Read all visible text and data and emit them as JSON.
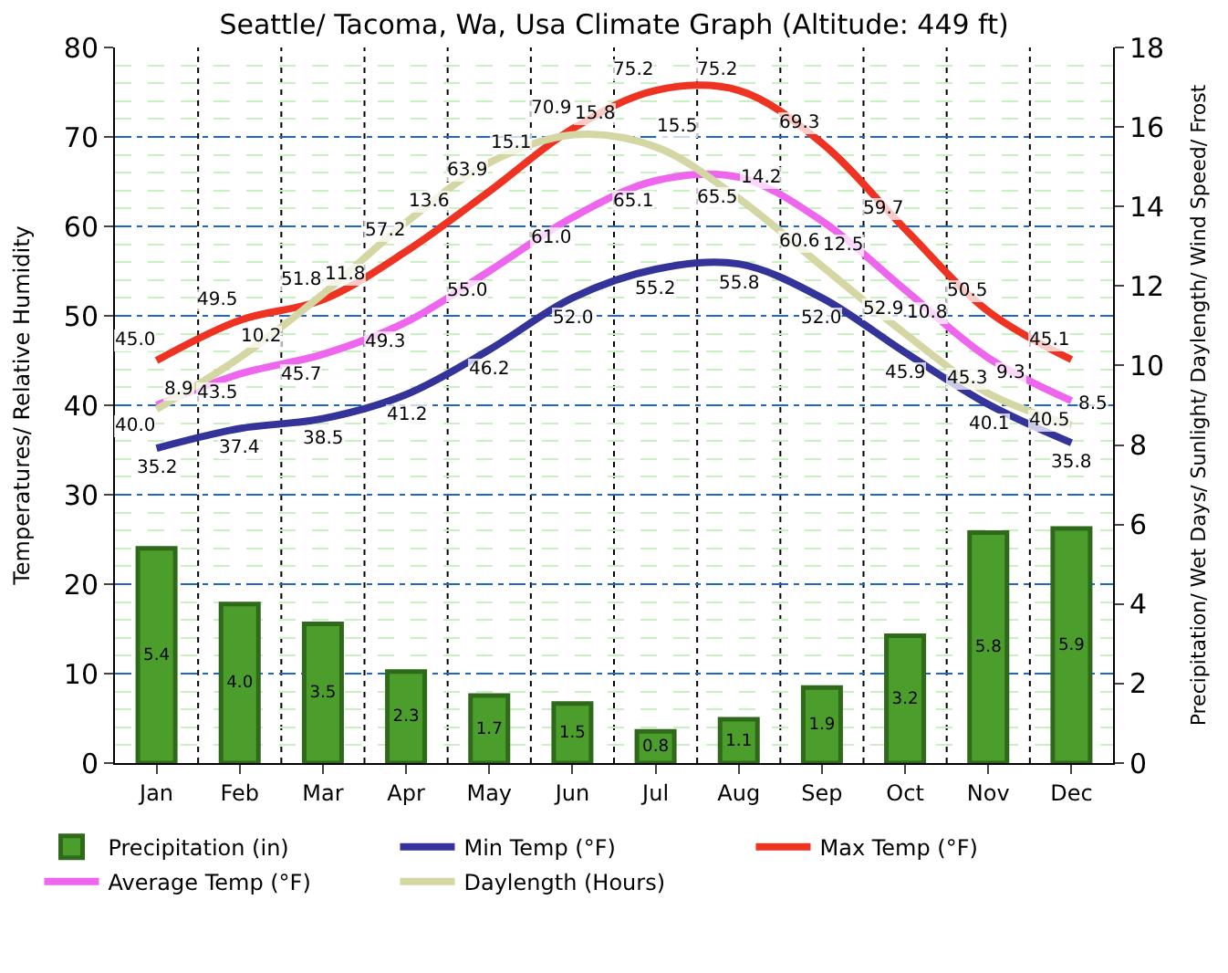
{
  "chart_data": {
    "type": "line",
    "title": "Seattle/ Tacoma, Wa, Usa Climate Graph (Altitude: 449 ft)",
    "ylabel": "Temperatures/ Relative Humidity",
    "y2label": "Precipitation/ Wet Days/ Sunlight/ Daylength/ Wind Speed/ Frost",
    "categories": [
      "Jan",
      "Feb",
      "Mar",
      "Apr",
      "May",
      "Jun",
      "Jul",
      "Aug",
      "Sep",
      "Oct",
      "Nov",
      "Dec"
    ],
    "series": [
      {
        "name": "Precipitation (in)",
        "type": "bar",
        "axis": "y2",
        "color": "#4c9e2c",
        "values": [
          5.4,
          4.0,
          3.5,
          2.3,
          1.7,
          1.5,
          0.8,
          1.1,
          1.9,
          3.2,
          5.8,
          5.9
        ],
        "value_labels": [
          "5.4",
          "4.0",
          "3.5",
          "2.3",
          "1.7",
          "1.5",
          "0.8",
          "1.1",
          "1.9",
          "3.2",
          "5.8",
          "5.9"
        ]
      },
      {
        "name": "Min Temp (°F)",
        "color": "#333399",
        "values": [
          35.2,
          37.4,
          38.5,
          41.2,
          46.2,
          52.0,
          55.2,
          55.8,
          52.0,
          45.9,
          40.1,
          35.8
        ],
        "value_labels": [
          "35.2",
          "37.4",
          "38.5",
          "41.2",
          "46.2",
          "52.0",
          "55.2",
          "55.8",
          "52.0",
          "45.9",
          "40.1",
          "35.8"
        ]
      },
      {
        "name": "Max Temp (°F)",
        "color": "#ee3322",
        "values": [
          45.0,
          49.5,
          51.8,
          57.2,
          63.9,
          70.9,
          75.2,
          75.2,
          69.3,
          59.7,
          50.5,
          45.1
        ],
        "value_labels": [
          "45.0",
          "49.5",
          "51.8",
          "57.2",
          "63.9",
          "70.9",
          "75.2",
          "75.2",
          "69.3",
          "59.7",
          "50.5",
          "45.1"
        ]
      },
      {
        "name": "Average Temp (°F)",
        "color": "#ee66ee",
        "values": [
          40.0,
          43.5,
          45.7,
          49.3,
          55.0,
          61.0,
          65.1,
          65.5,
          60.6,
          52.9,
          45.3,
          40.5
        ],
        "value_labels": [
          "40.0",
          "43.5",
          "45.7",
          "49.3",
          "55.0",
          "61.0",
          "65.1",
          "65.5",
          "60.6",
          "52.9",
          "45.3",
          "40.5"
        ]
      },
      {
        "name": "Daylength (Hours)",
        "axis": "y2",
        "color": "#d4d6a4",
        "values": [
          8.9,
          10.2,
          11.8,
          13.6,
          15.1,
          15.8,
          15.5,
          14.2,
          12.5,
          10.8,
          9.3,
          8.5
        ],
        "value_labels": [
          "8.9",
          "10.2",
          "11.8",
          "13.6",
          "15.1",
          "15.8",
          "15.5",
          "14.2",
          "12.5",
          "10.8",
          "9.3",
          "8.5"
        ]
      }
    ],
    "ylim": [
      0,
      80
    ],
    "yticks": [
      0,
      10,
      20,
      30,
      40,
      50,
      60,
      70,
      80
    ],
    "y2lim": [
      0,
      18
    ],
    "y2ticks": [
      0,
      2,
      4,
      6,
      8,
      10,
      12,
      14,
      16,
      18
    ],
    "grid": true,
    "legend": "bottom",
    "marker": "none",
    "line_style": "solid"
  }
}
